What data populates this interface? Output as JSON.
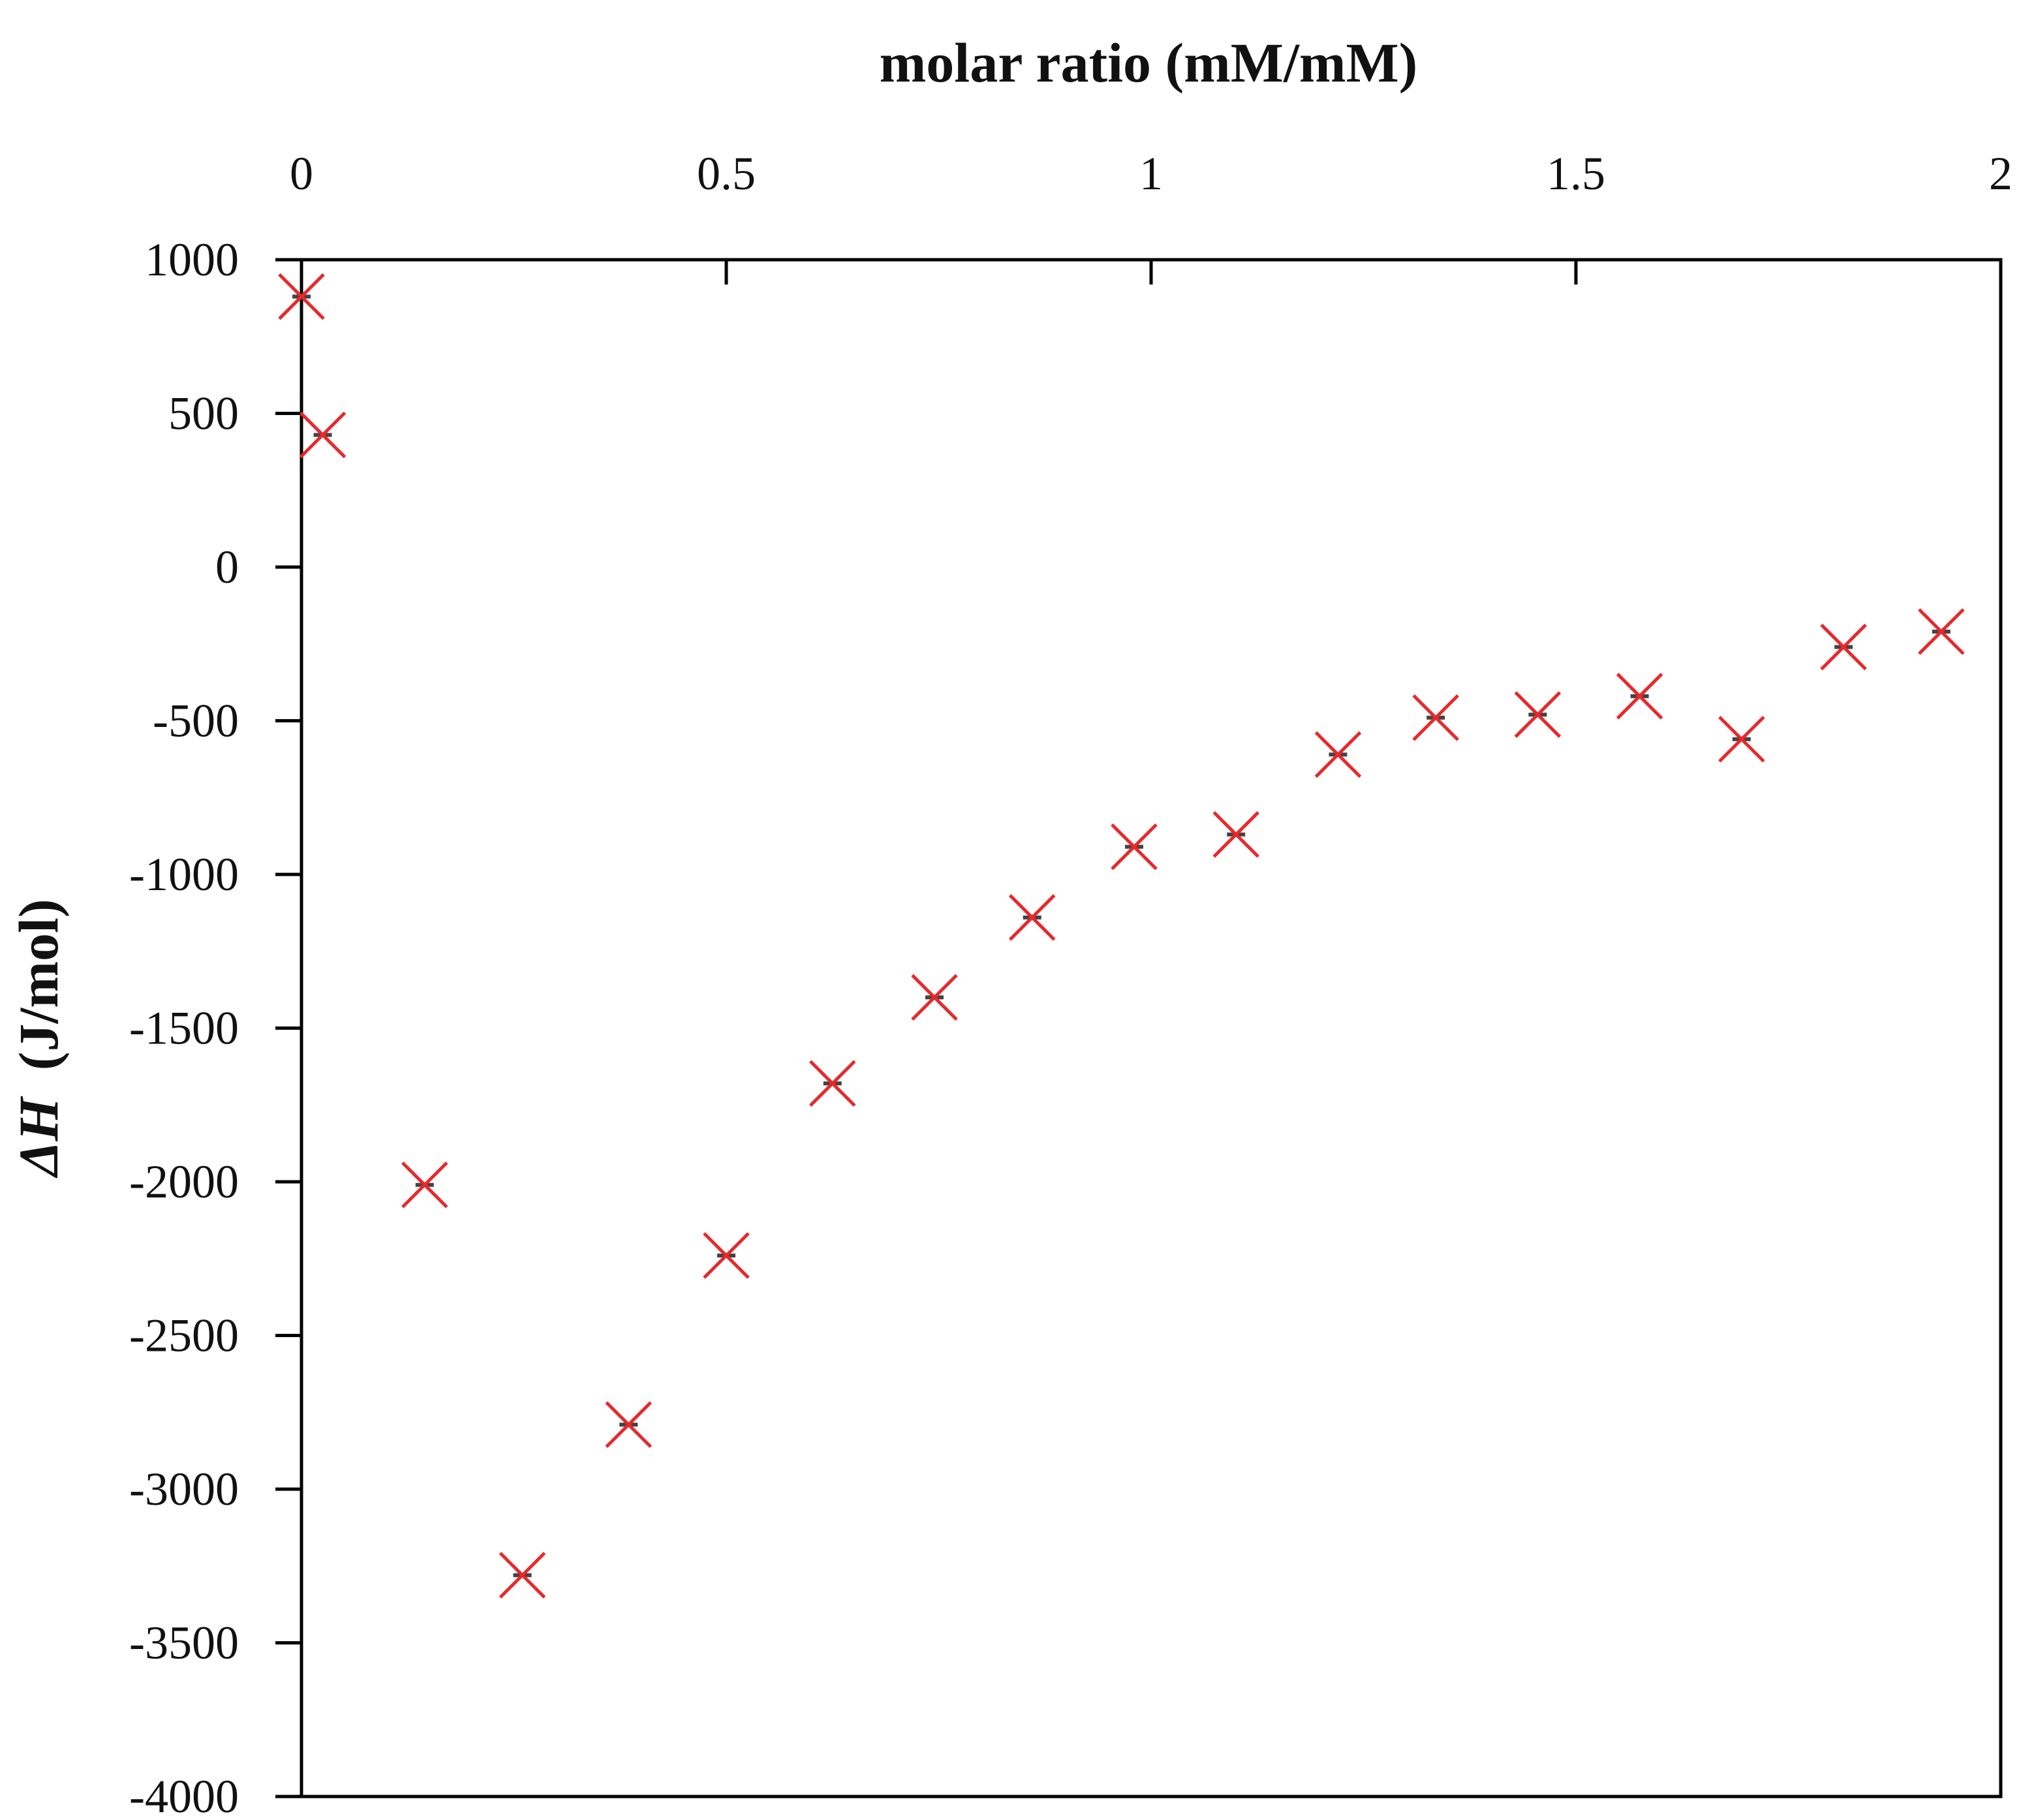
{
  "chart_data": {
    "type": "scatter",
    "title": "",
    "xlabel": "molar ratio (mM/mM)",
    "ylabel_symbol": "ΔH",
    "ylabel_unit": "(J/mol)",
    "xlim": [
      0,
      2
    ],
    "ylim": [
      -4000,
      1000
    ],
    "x_ticks": [
      0,
      0.5,
      1,
      1.5,
      2
    ],
    "x_tick_labels": [
      "0",
      "0.5",
      "1",
      "1.5",
      "2"
    ],
    "y_ticks": [
      1000,
      500,
      0,
      -500,
      -1000,
      -1500,
      -2000,
      -2500,
      -3000,
      -3500,
      -4000
    ],
    "y_tick_labels": [
      "1000",
      "500",
      "0",
      "-500",
      "-1000",
      "-1500",
      "-2000",
      "-2500",
      "-3000",
      "-3500",
      "-4000"
    ],
    "x_axis_position": "top",
    "grid": false,
    "marker": "x",
    "marker_color": "#e8282b",
    "error_bar_color": "#444444",
    "series": [
      {
        "name": "ΔH",
        "points": [
          {
            "x": 0.0,
            "y": 880
          },
          {
            "x": 0.025,
            "y": 430
          },
          {
            "x": 0.145,
            "y": -2010
          },
          {
            "x": 0.26,
            "y": -3280
          },
          {
            "x": 0.385,
            "y": -2790
          },
          {
            "x": 0.5,
            "y": -2240
          },
          {
            "x": 0.625,
            "y": -1680
          },
          {
            "x": 0.745,
            "y": -1400
          },
          {
            "x": 0.86,
            "y": -1140
          },
          {
            "x": 0.98,
            "y": -910
          },
          {
            "x": 1.1,
            "y": -870
          },
          {
            "x": 1.22,
            "y": -610
          },
          {
            "x": 1.335,
            "y": -490
          },
          {
            "x": 1.455,
            "y": -480
          },
          {
            "x": 1.575,
            "y": -420
          },
          {
            "x": 1.695,
            "y": -560
          },
          {
            "x": 1.815,
            "y": -260
          },
          {
            "x": 1.93,
            "y": -210
          }
        ]
      }
    ]
  }
}
